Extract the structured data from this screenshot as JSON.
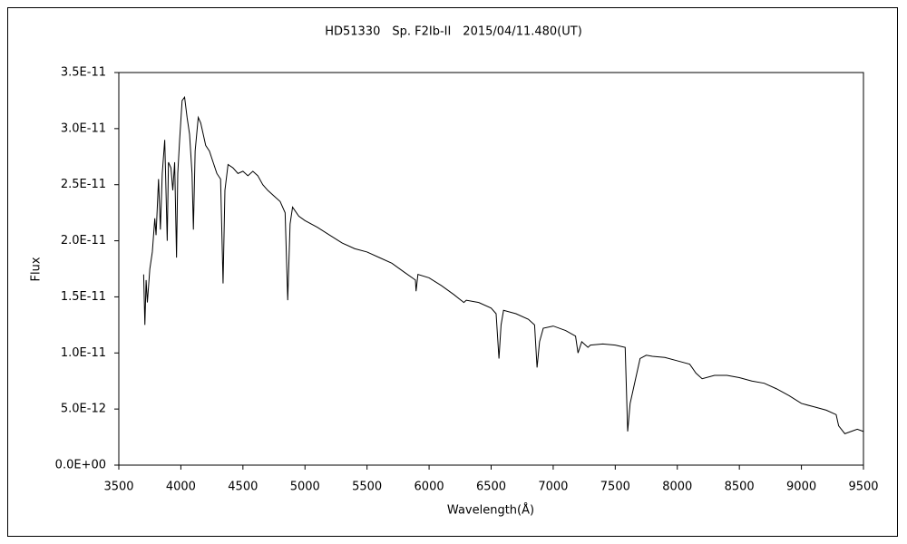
{
  "chart_data": {
    "type": "line",
    "title": "HD51330　Sp. F2Ib-II　2015/04/11.480(UT)",
    "x_label": "Wavelength(Å)",
    "y_label": "Flux",
    "xlim": [
      3500,
      9500
    ],
    "xticks": [
      3500,
      4000,
      4500,
      5000,
      5500,
      6000,
      6500,
      7000,
      7500,
      8000,
      8500,
      9000,
      9500
    ],
    "ylim": [
      0,
      3.5e-11
    ],
    "yticks": [
      {
        "value": 0,
        "label": "0.0E+00"
      },
      {
        "value": 5e-12,
        "label": "5.0E-12"
      },
      {
        "value": 1e-11,
        "label": "1.0E-11"
      },
      {
        "value": 1.5e-11,
        "label": "1.5E-11"
      },
      {
        "value": 2e-11,
        "label": "2.0E-11"
      },
      {
        "value": 2.5e-11,
        "label": "2.5E-11"
      },
      {
        "value": 3e-11,
        "label": "3.0E-11"
      },
      {
        "value": 3.5e-11,
        "label": "3.5E-11"
      }
    ],
    "grid": false,
    "color": "#000000",
    "x": [
      3700,
      3710,
      3720,
      3730,
      3750,
      3770,
      3790,
      3800,
      3820,
      3835,
      3850,
      3870,
      3880,
      3890,
      3900,
      3920,
      3935,
      3950,
      3965,
      3975,
      3990,
      4010,
      4030,
      4050,
      4070,
      4090,
      4101,
      4115,
      4140,
      4160,
      4180,
      4200,
      4230,
      4260,
      4290,
      4320,
      4340,
      4355,
      4380,
      4420,
      4460,
      4500,
      4540,
      4580,
      4620,
      4660,
      4700,
      4750,
      4800,
      4840,
      4861,
      4880,
      4900,
      4950,
      5000,
      5100,
      5200,
      5300,
      5400,
      5500,
      5600,
      5700,
      5800,
      5890,
      5895,
      5910,
      6000,
      6100,
      6200,
      6280,
      6300,
      6400,
      6500,
      6540,
      6563,
      6580,
      6600,
      6700,
      6800,
      6850,
      6870,
      6890,
      6920,
      7000,
      7100,
      7180,
      7200,
      7230,
      7280,
      7300,
      7400,
      7500,
      7580,
      7600,
      7620,
      7650,
      7700,
      7750,
      7800,
      7900,
      8000,
      8100,
      8150,
      8200,
      8300,
      8400,
      8500,
      8600,
      8700,
      8800,
      8900,
      9000,
      9100,
      9200,
      9280,
      9300,
      9350,
      9400,
      9450,
      9500
    ],
    "values": [
      1.7e-11,
      1.25e-11,
      1.65e-11,
      1.45e-11,
      1.75e-11,
      1.9e-11,
      2.2e-11,
      2.05e-11,
      2.55e-11,
      2.1e-11,
      2.6e-11,
      2.9e-11,
      2.45e-11,
      2e-11,
      2.7e-11,
      2.65e-11,
      2.45e-11,
      2.7e-11,
      1.85e-11,
      2.6e-11,
      2.9e-11,
      3.25e-11,
      3.28e-11,
      3.1e-11,
      2.95e-11,
      2.6e-11,
      2.1e-11,
      2.8e-11,
      3.1e-11,
      3.05e-11,
      2.95e-11,
      2.85e-11,
      2.8e-11,
      2.7e-11,
      2.6e-11,
      2.55e-11,
      1.62e-11,
      2.45e-11,
      2.68e-11,
      2.65e-11,
      2.6e-11,
      2.62e-11,
      2.58e-11,
      2.62e-11,
      2.58e-11,
      2.5e-11,
      2.45e-11,
      2.4e-11,
      2.35e-11,
      2.25e-11,
      1.47e-11,
      2.15e-11,
      2.3e-11,
      2.22e-11,
      2.18e-11,
      2.12e-11,
      2.05e-11,
      1.98e-11,
      1.93e-11,
      1.9e-11,
      1.85e-11,
      1.8e-11,
      1.72e-11,
      1.65e-11,
      1.55e-11,
      1.7e-11,
      1.67e-11,
      1.6e-11,
      1.52e-11,
      1.45e-11,
      1.47e-11,
      1.45e-11,
      1.4e-11,
      1.35e-11,
      9.5e-12,
      1.25e-11,
      1.38e-11,
      1.35e-11,
      1.3e-11,
      1.25e-11,
      8.7e-12,
      1.1e-11,
      1.22e-11,
      1.24e-11,
      1.2e-11,
      1.15e-11,
      1e-11,
      1.1e-11,
      1.05e-11,
      1.07e-11,
      1.08e-11,
      1.07e-11,
      1.05e-11,
      3e-12,
      5.5e-12,
      7e-12,
      9.5e-12,
      9.8e-12,
      9.7e-12,
      9.6e-12,
      9.3e-12,
      9e-12,
      8.2e-12,
      7.7e-12,
      8e-12,
      8e-12,
      7.8e-12,
      7.5e-12,
      7.3e-12,
      6.8e-12,
      6.2e-12,
      5.5e-12,
      5.2e-12,
      4.9e-12,
      4.5e-12,
      3.5e-12,
      2.8e-12,
      3e-12,
      3.2e-12,
      3e-12
    ]
  }
}
